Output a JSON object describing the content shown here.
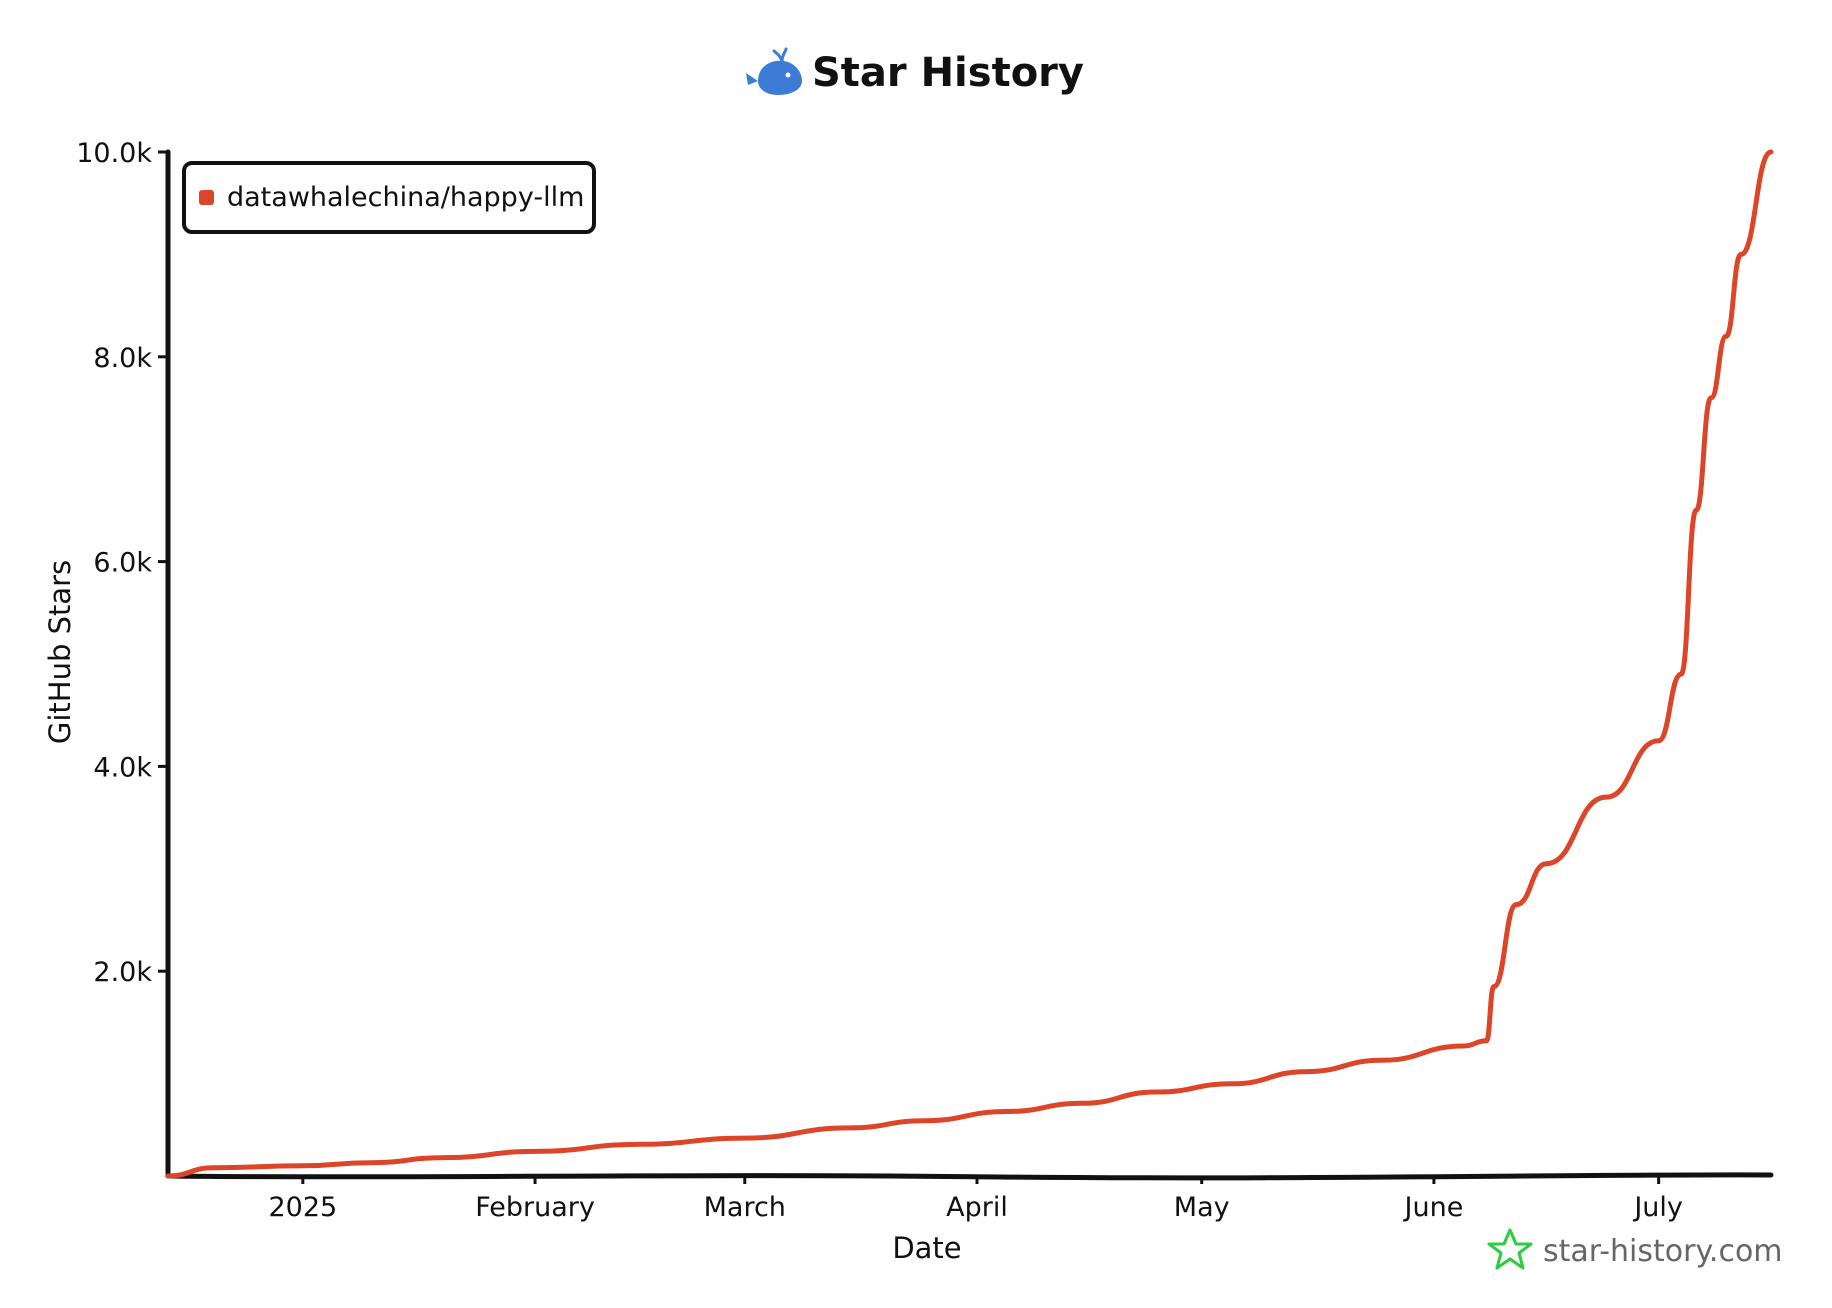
{
  "chart_data": {
    "type": "line",
    "title": "Star History",
    "xlabel": "Date",
    "ylabel": "GitHub Stars",
    "x_ticks": [
      "2025",
      "February",
      "March",
      "April",
      "May",
      "June",
      "July"
    ],
    "y_ticks": [
      "2.0k",
      "4.0k",
      "6.0k",
      "8.0k",
      "10.0k"
    ],
    "ylim": [
      0,
      10000
    ],
    "xlim": [
      "2024-12-14",
      "2025-07-16"
    ],
    "grid": false,
    "legend_position": "top-left",
    "series": [
      {
        "name": "datawhalechina/happy-llm",
        "color": "#dd4528",
        "points": [
          [
            "2024-12-14",
            0
          ],
          [
            "2024-12-20",
            80
          ],
          [
            "2025-01-01",
            100
          ],
          [
            "2025-01-10",
            130
          ],
          [
            "2025-01-20",
            180
          ],
          [
            "2025-02-01",
            240
          ],
          [
            "2025-02-15",
            310
          ],
          [
            "2025-03-01",
            370
          ],
          [
            "2025-03-15",
            470
          ],
          [
            "2025-03-25",
            540
          ],
          [
            "2025-04-05",
            630
          ],
          [
            "2025-04-15",
            710
          ],
          [
            "2025-04-25",
            820
          ],
          [
            "2025-05-05",
            900
          ],
          [
            "2025-05-15",
            1020
          ],
          [
            "2025-05-25",
            1130
          ],
          [
            "2025-06-05",
            1270
          ],
          [
            "2025-06-08",
            1320
          ],
          [
            "2025-06-09",
            1850
          ],
          [
            "2025-06-12",
            2650
          ],
          [
            "2025-06-16",
            3050
          ],
          [
            "2025-06-24",
            3700
          ],
          [
            "2025-07-01",
            4250
          ],
          [
            "2025-07-04",
            4900
          ],
          [
            "2025-07-06",
            6500
          ],
          [
            "2025-07-08",
            7600
          ],
          [
            "2025-07-10",
            8200
          ],
          [
            "2025-07-12",
            9000
          ],
          [
            "2025-07-16",
            10000
          ]
        ]
      }
    ]
  },
  "watermark": "star-history.com",
  "colors": {
    "series": "#dd4528",
    "axis": "#111111",
    "logo": "#3c7bd6",
    "watermark_star": "#2ecc40"
  }
}
